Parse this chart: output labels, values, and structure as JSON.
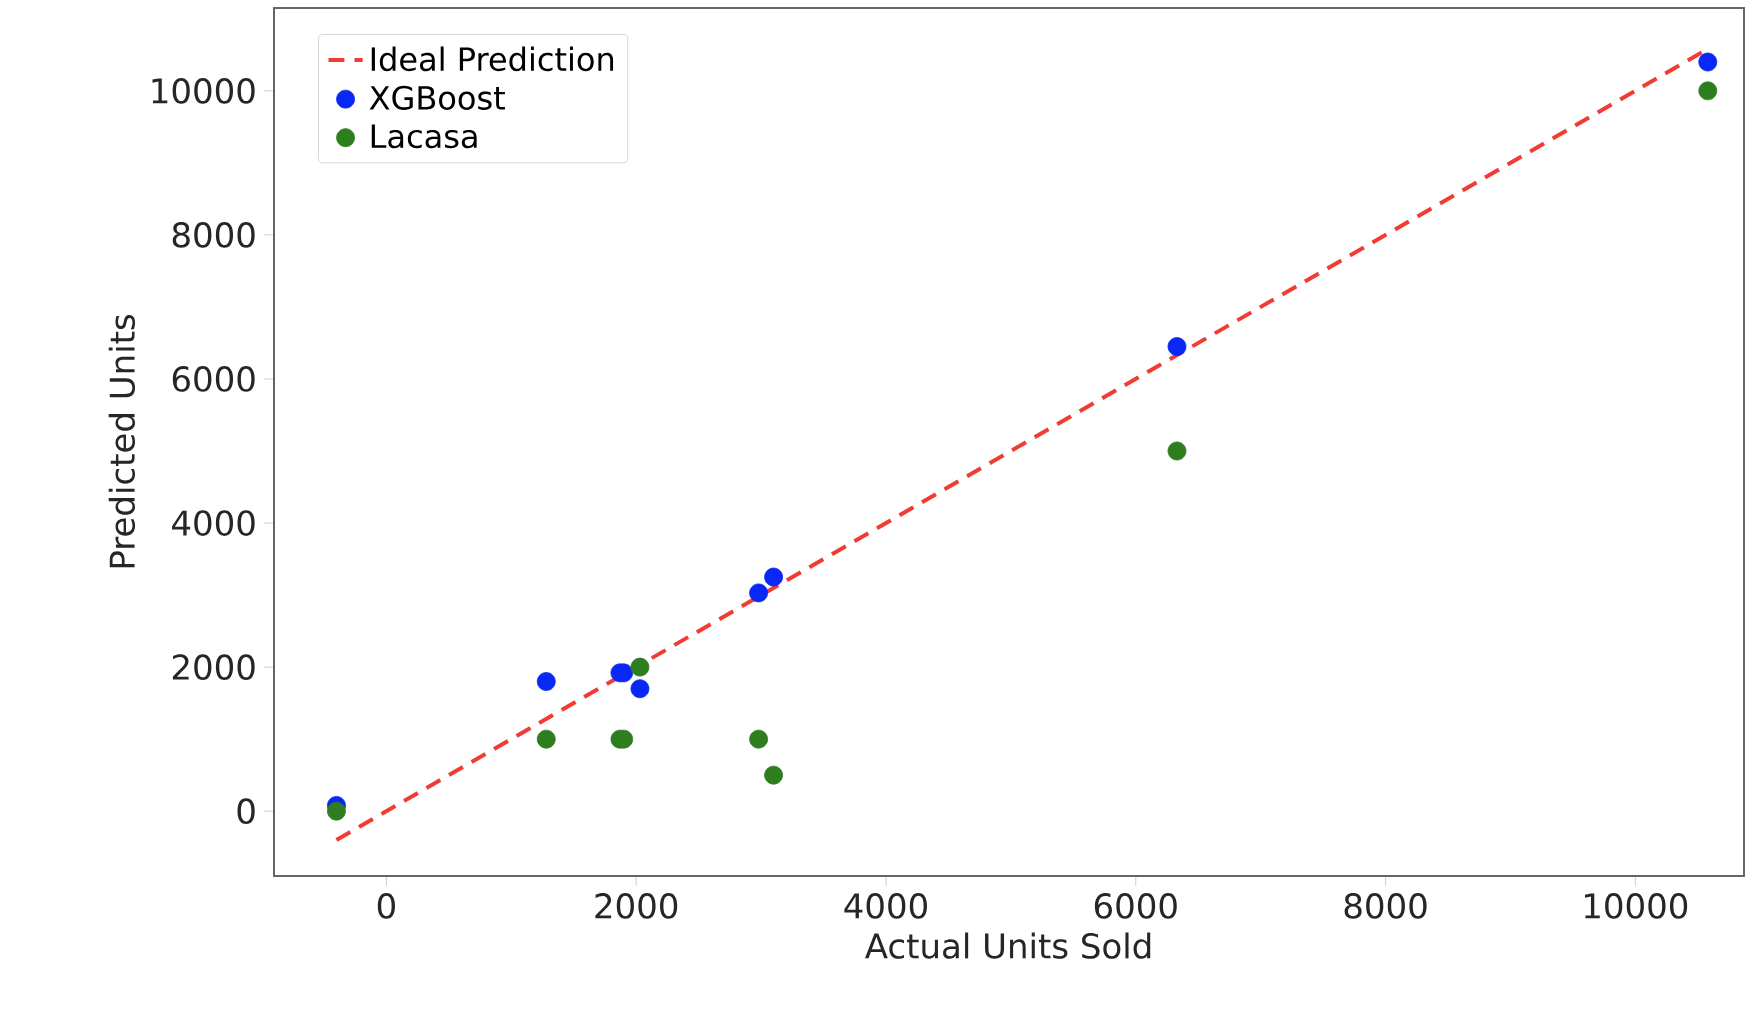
{
  "chart_data": {
    "type": "scatter",
    "xlabel": "Actual Units Sold",
    "ylabel": "Predicted Units",
    "xlim": [
      -900,
      10870
    ],
    "ylim": [
      -900,
      11150
    ],
    "xticks": [
      0,
      2000,
      4000,
      6000,
      8000,
      10000
    ],
    "yticks": [
      0,
      2000,
      4000,
      6000,
      8000,
      10000
    ],
    "grid": false,
    "legend": "top left",
    "series": [
      {
        "name": "Ideal Prediction",
        "type": "line",
        "line_style": "dashed",
        "marker": "none",
        "color": "#f03c32",
        "x": [
          -400,
          10580
        ],
        "values": [
          -400,
          10580
        ]
      },
      {
        "name": "XGBoost",
        "marker": "circle",
        "color": "#0a28f5",
        "x": [
          -400,
          1280,
          1870,
          1900,
          2030,
          2980,
          3100,
          6330,
          10580
        ],
        "values": [
          80,
          1800,
          1920,
          1920,
          1700,
          3030,
          3250,
          6450,
          10400
        ]
      },
      {
        "name": "Lacasa",
        "marker": "circle",
        "color": "#2e7d1e",
        "x": [
          -400,
          1280,
          1870,
          1900,
          2030,
          2980,
          3100,
          6330,
          10580
        ],
        "values": [
          0,
          1000,
          1000,
          1000,
          2000,
          1000,
          500,
          5000,
          10000
        ]
      }
    ]
  }
}
